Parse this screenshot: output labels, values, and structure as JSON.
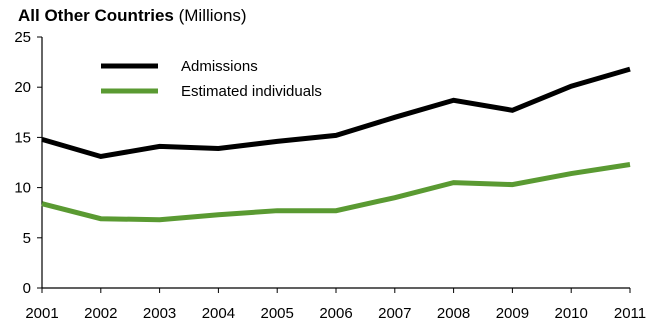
{
  "chart_data": {
    "type": "line",
    "title": "All Other Countries",
    "title_unit": "(Millions)",
    "x": [
      "2001",
      "2002",
      "2003",
      "2004",
      "2005",
      "2006",
      "2007",
      "2008",
      "2009",
      "2010",
      "2011"
    ],
    "ylim": [
      0,
      25
    ],
    "y_ticks": [
      0,
      5,
      10,
      15,
      20,
      25
    ],
    "grid": false,
    "legend_position": "top-left",
    "series": [
      {
        "name": "Admissions",
        "color": "#000000",
        "values": [
          14.8,
          13.1,
          14.1,
          13.9,
          14.6,
          15.2,
          17.0,
          18.7,
          17.7,
          20.1,
          21.8
        ]
      },
      {
        "name": "Estimated individuals",
        "color": "#5a9a32",
        "values": [
          8.4,
          6.9,
          6.8,
          7.3,
          7.7,
          7.7,
          9.0,
          10.5,
          10.3,
          11.4,
          12.3
        ]
      }
    ]
  }
}
